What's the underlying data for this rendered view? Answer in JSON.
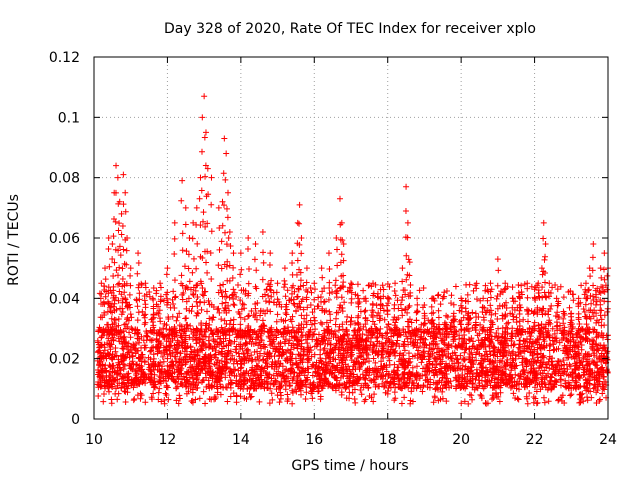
{
  "chart_data": {
    "type": "scatter",
    "title": "Day 328 of 2020, Rate Of TEC Index for receiver xplo",
    "xlabel": "GPS time / hours",
    "ylabel": "ROTI / TECUs",
    "xlim": [
      10,
      24
    ],
    "ylim": [
      0,
      0.12
    ],
    "x_ticks": [
      10,
      12,
      14,
      16,
      18,
      20,
      22,
      24
    ],
    "y_ticks": [
      0,
      0.02,
      0.04,
      0.06,
      0.08,
      0.1,
      0.12
    ],
    "x_tick_labels": [
      "10",
      "12",
      "14",
      "16",
      "18",
      "20",
      "22",
      "24"
    ],
    "y_tick_labels": [
      "0",
      "0.02",
      "0.04",
      "0.06",
      "0.08",
      "0.1",
      "0.12"
    ],
    "grid": true,
    "marker": "+",
    "color": "#ff0000",
    "baseline_band": {
      "x_range": [
        10.1,
        24.0
      ],
      "y_range_typical": [
        0.01,
        0.03
      ],
      "description_only": false
    },
    "series": [
      {
        "name": "ROTI",
        "x": [
          10.2,
          10.3,
          10.4,
          10.5,
          10.55,
          10.6,
          10.65,
          10.7,
          10.75,
          10.8,
          10.85,
          10.9,
          11.0,
          11.2,
          11.4,
          11.6,
          11.8,
          12.0,
          12.2,
          12.4,
          12.5,
          12.6,
          12.7,
          12.8,
          12.9,
          12.95,
          13.0,
          13.05,
          13.1,
          13.2,
          13.4,
          13.5,
          13.55,
          13.6,
          13.65,
          13.7,
          13.8,
          14.0,
          14.2,
          14.4,
          14.6,
          14.8,
          15.0,
          15.2,
          15.4,
          15.55,
          15.6,
          15.65,
          15.8,
          16.0,
          16.2,
          16.4,
          16.6,
          16.7,
          16.75,
          16.8,
          17.0,
          17.2,
          17.4,
          17.6,
          17.8,
          18.0,
          18.2,
          18.4,
          18.5,
          18.55,
          18.6,
          18.8,
          19.0,
          19.2,
          19.4,
          19.6,
          19.8,
          20.0,
          20.2,
          20.4,
          20.6,
          20.8,
          21.0,
          21.2,
          21.4,
          21.6,
          21.8,
          22.0,
          22.1,
          22.2,
          22.25,
          22.3,
          22.4,
          22.6,
          22.8,
          23.0,
          23.2,
          23.4,
          23.5,
          23.6,
          23.8,
          23.9,
          24.0
        ],
        "y": [
          0.045,
          0.05,
          0.06,
          0.058,
          0.075,
          0.084,
          0.08,
          0.072,
          0.068,
          0.081,
          0.075,
          0.06,
          0.05,
          0.055,
          0.045,
          0.04,
          0.045,
          0.05,
          0.065,
          0.079,
          0.07,
          0.06,
          0.065,
          0.07,
          0.08,
          0.1,
          0.107,
          0.095,
          0.083,
          0.08,
          0.07,
          0.072,
          0.093,
          0.088,
          0.075,
          0.062,
          0.055,
          0.055,
          0.06,
          0.058,
          0.062,
          0.055,
          0.045,
          0.05,
          0.055,
          0.065,
          0.071,
          0.06,
          0.05,
          0.045,
          0.05,
          0.055,
          0.06,
          0.073,
          0.065,
          0.058,
          0.045,
          0.04,
          0.04,
          0.045,
          0.04,
          0.04,
          0.045,
          0.05,
          0.077,
          0.065,
          0.052,
          0.04,
          0.035,
          0.035,
          0.03,
          0.03,
          0.035,
          0.04,
          0.035,
          0.035,
          0.04,
          0.045,
          0.053,
          0.045,
          0.04,
          0.04,
          0.045,
          0.043,
          0.045,
          0.05,
          0.065,
          0.058,
          0.045,
          0.04,
          0.035,
          0.035,
          0.04,
          0.045,
          0.05,
          0.058,
          0.05,
          0.055,
          0.05
        ]
      }
    ]
  }
}
